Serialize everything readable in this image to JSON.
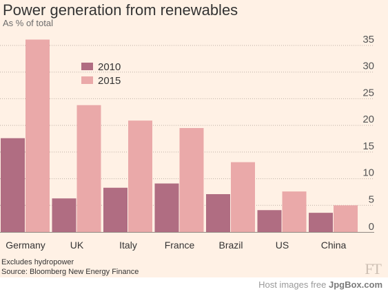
{
  "chart_data": {
    "type": "bar",
    "title": "Power generation from renewables",
    "subtitle": "As % of total",
    "categories": [
      "Germany",
      "UK",
      "Italy",
      "France",
      "Brazil",
      "US",
      "China"
    ],
    "series": [
      {
        "name": "2010",
        "values": [
          17.6,
          6.3,
          8.3,
          9.1,
          7.1,
          4.1,
          3.6
        ],
        "color": "#b06d82"
      },
      {
        "name": "2015",
        "values": [
          36.1,
          23.8,
          20.9,
          19.5,
          13.1,
          7.6,
          5.0
        ],
        "color": "#eaa9a9"
      }
    ],
    "yticks": [
      "35",
      "30",
      "25",
      "20",
      "15",
      "10",
      "5",
      "0"
    ],
    "ylim": [
      0,
      35
    ],
    "grid": true,
    "legend_position": "top-left"
  },
  "notes": {
    "line1": "Excludes hydropower",
    "line2": "Source: Bloomberg New Energy Finance"
  },
  "brand": "FT",
  "watermark": {
    "prefix": "Host images free",
    "site": "JpgBox.com"
  }
}
